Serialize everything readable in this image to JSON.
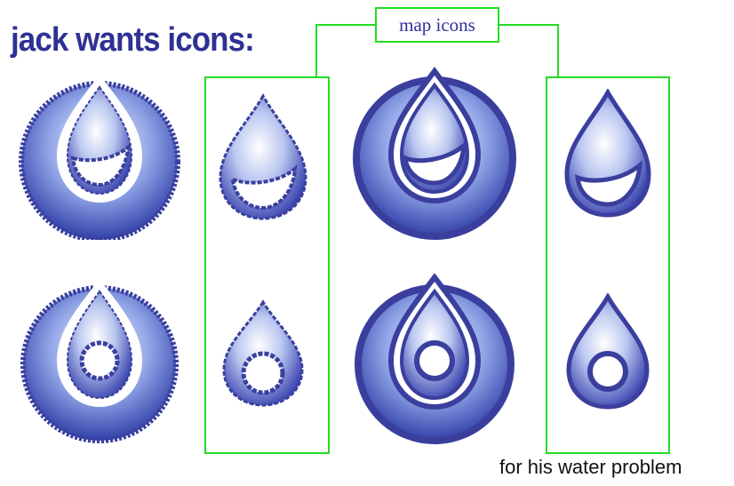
{
  "header": {
    "title": "jack wants icons:"
  },
  "map_section": {
    "label": "map icons"
  },
  "footer": {
    "caption": "for his water problem"
  },
  "colors": {
    "ring": "#3a3f9e",
    "drop_light": "#ffffff",
    "drop_dark": "#2f38a8",
    "frame": "#22dd22",
    "title_text": "#2f3195"
  },
  "icons": [
    {
      "style": "sketchy",
      "inner": "smile",
      "framed": "ring"
    },
    {
      "style": "sketchy",
      "inner": "smile",
      "framed": "drop"
    },
    {
      "style": "clean",
      "inner": "smile",
      "framed": "ring"
    },
    {
      "style": "clean",
      "inner": "smile",
      "framed": "drop"
    },
    {
      "style": "sketchy",
      "inner": "circle",
      "framed": "ring"
    },
    {
      "style": "sketchy",
      "inner": "circle",
      "framed": "drop"
    },
    {
      "style": "clean",
      "inner": "circle",
      "framed": "ring"
    },
    {
      "style": "clean",
      "inner": "circle",
      "framed": "drop"
    }
  ]
}
